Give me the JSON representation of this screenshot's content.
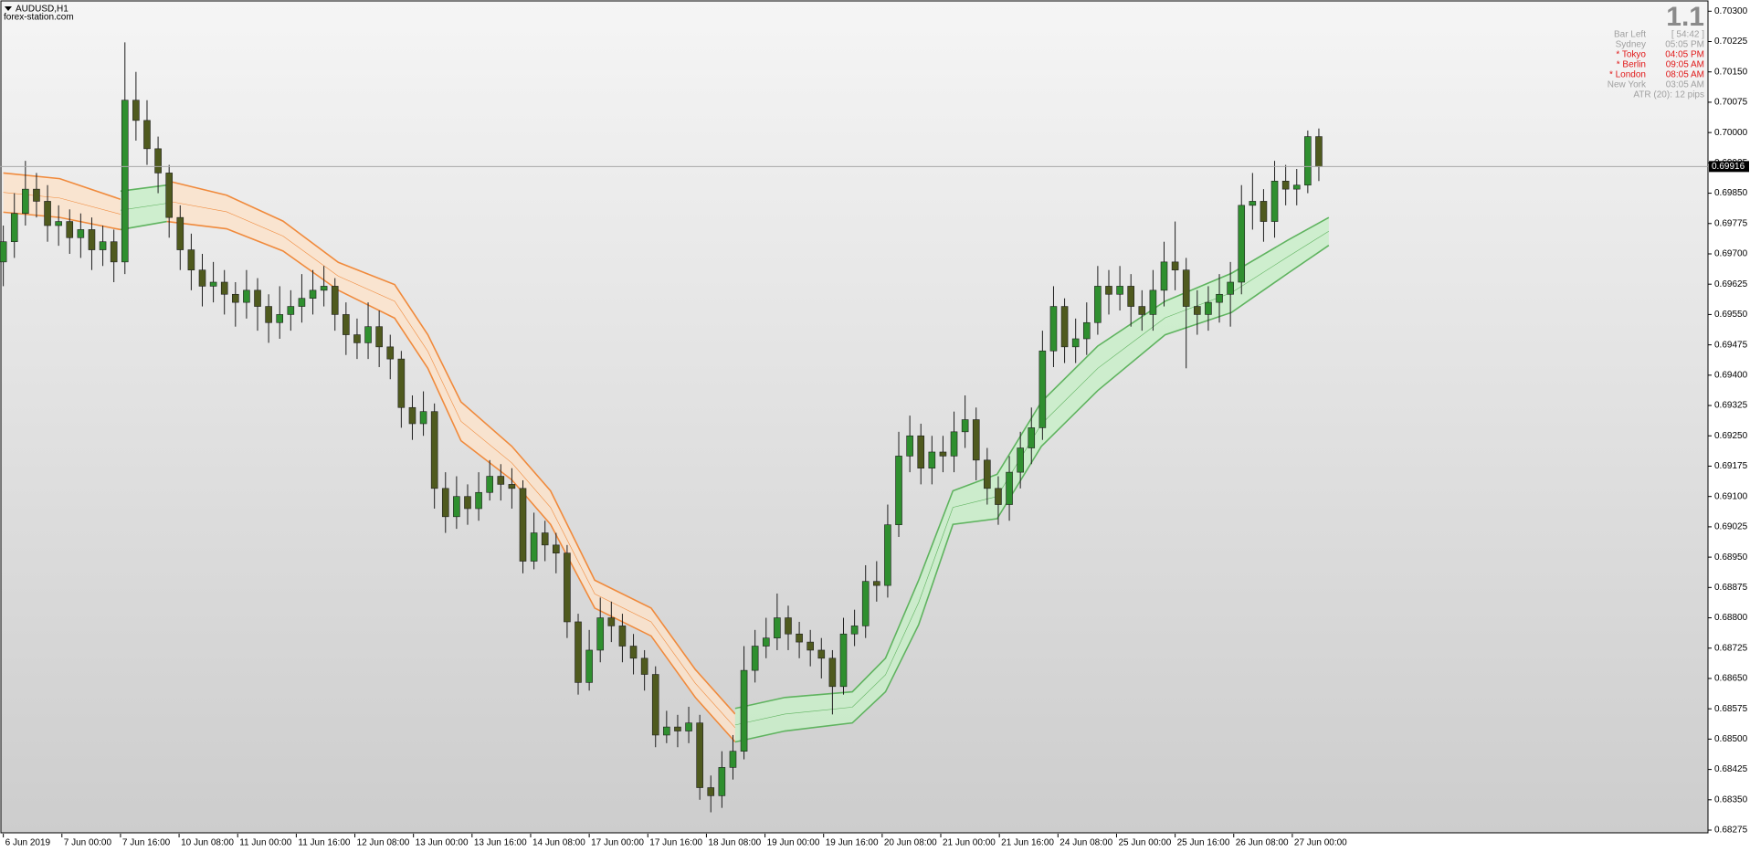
{
  "chart_data": {
    "type": "candlestick",
    "symbol": "AUDUSD,H1",
    "watermark": "forex-station.com",
    "candle_colors": {
      "up": "#2f8f2f",
      "down": "#4f5a1e",
      "wick": "#1e1e1e"
    },
    "open": [
      0.6968,
      0.6973,
      0.698,
      0.6986,
      0.6983,
      0.6977,
      0.6978,
      0.6974,
      0.6976,
      0.6971,
      0.6973,
      0.6968,
      0.7008,
      0.7003,
      0.6996,
      0.699,
      0.6979,
      0.6971,
      0.6966,
      0.6962,
      0.6963,
      0.696,
      0.6958,
      0.6961,
      0.6957,
      0.6953,
      0.6955,
      0.6957,
      0.6959,
      0.6961,
      0.6962,
      0.6955,
      0.695,
      0.6948,
      0.6952,
      0.6947,
      0.6944,
      0.6932,
      0.6928,
      0.6931,
      0.6912,
      0.6905,
      0.691,
      0.6907,
      0.6911,
      0.6915,
      0.6913,
      0.6912,
      0.6894,
      0.6901,
      0.6898,
      0.6896,
      0.6879,
      0.6864,
      0.6872,
      0.688,
      0.6878,
      0.6873,
      0.687,
      0.6866,
      0.6851,
      0.6853,
      0.6852,
      0.6854,
      0.6838,
      0.6836,
      0.6843,
      0.6847,
      0.6867,
      0.6873,
      0.6875,
      0.688,
      0.6876,
      0.6874,
      0.6872,
      0.687,
      0.6863,
      0.6876,
      0.6878,
      0.6889,
      0.6888,
      0.6903,
      0.692,
      0.6925,
      0.6917,
      0.6921,
      0.692,
      0.6926,
      0.6929,
      0.6919,
      0.6912,
      0.6908,
      0.6916,
      0.6922,
      0.6927,
      0.6946,
      0.6957,
      0.6947,
      0.6949,
      0.6953,
      0.6962,
      0.696,
      0.6962,
      0.6957,
      0.6955,
      0.6961,
      0.6968,
      0.6966,
      0.6957,
      0.6955,
      0.6958,
      0.696,
      0.6963,
      0.6982,
      0.6983,
      0.6978,
      0.6988,
      0.6986,
      0.6987,
      0.6999
    ],
    "high": [
      0.6977,
      0.6985,
      0.6993,
      0.699,
      0.6987,
      0.6982,
      0.6981,
      0.698,
      0.6979,
      0.6977,
      0.6976,
      0.70223,
      0.7015,
      0.7008,
      0.6999,
      0.6992,
      0.6982,
      0.6975,
      0.697,
      0.6968,
      0.6966,
      0.6963,
      0.6966,
      0.6964,
      0.696,
      0.6962,
      0.6961,
      0.6965,
      0.6966,
      0.6967,
      0.6964,
      0.6958,
      0.6954,
      0.6958,
      0.6956,
      0.695,
      0.6946,
      0.6935,
      0.6936,
      0.6933,
      0.6916,
      0.6915,
      0.6913,
      0.6916,
      0.6919,
      0.6918,
      0.6917,
      0.6914,
      0.6906,
      0.6904,
      0.6901,
      0.6898,
      0.6881,
      0.6877,
      0.6885,
      0.6884,
      0.6881,
      0.6876,
      0.6872,
      0.6868,
      0.6857,
      0.6856,
      0.6858,
      0.6856,
      0.6841,
      0.6847,
      0.6851,
      0.6873,
      0.6877,
      0.688,
      0.6886,
      0.6883,
      0.6879,
      0.6877,
      0.6875,
      0.6872,
      0.688,
      0.6882,
      0.6893,
      0.6894,
      0.6908,
      0.6926,
      0.693,
      0.6928,
      0.6925,
      0.6925,
      0.6931,
      0.6935,
      0.6932,
      0.6922,
      0.6915,
      0.692,
      0.6926,
      0.6932,
      0.6951,
      0.6962,
      0.6959,
      0.6954,
      0.6958,
      0.6967,
      0.6966,
      0.6967,
      0.6965,
      0.6961,
      0.6966,
      0.6973,
      0.6978,
      0.6969,
      0.6961,
      0.6962,
      0.6965,
      0.6968,
      0.6987,
      0.699,
      0.6986,
      0.6993,
      0.6992,
      0.6991,
      0.70005,
      0.7001
    ],
    "low": [
      0.6962,
      0.6969,
      0.6977,
      0.6979,
      0.6973,
      0.6972,
      0.697,
      0.6969,
      0.6966,
      0.6967,
      0.6963,
      0.6965,
      0.6998,
      0.6992,
      0.6985,
      0.6974,
      0.6966,
      0.6961,
      0.6957,
      0.6958,
      0.6955,
      0.6952,
      0.6954,
      0.6951,
      0.6948,
      0.6949,
      0.6951,
      0.6953,
      0.6955,
      0.6957,
      0.6951,
      0.6945,
      0.6944,
      0.6944,
      0.6942,
      0.6939,
      0.6927,
      0.6924,
      0.6925,
      0.6907,
      0.6901,
      0.6902,
      0.6903,
      0.6904,
      0.6909,
      0.6909,
      0.6907,
      0.6891,
      0.6892,
      0.6894,
      0.6891,
      0.6875,
      0.6861,
      0.6862,
      0.6869,
      0.6874,
      0.6869,
      0.6866,
      0.6862,
      0.6848,
      0.6849,
      0.6848,
      0.6849,
      0.6835,
      0.68319,
      0.6833,
      0.684,
      0.6845,
      0.6864,
      0.687,
      0.6872,
      0.6872,
      0.687,
      0.6868,
      0.6865,
      0.68561,
      0.6861,
      0.6873,
      0.6875,
      0.6884,
      0.6885,
      0.69,
      0.6916,
      0.6913,
      0.6913,
      0.6916,
      0.6916,
      0.6922,
      0.6914,
      0.6908,
      0.6903,
      0.6904,
      0.6912,
      0.6918,
      0.6924,
      0.6942,
      0.6943,
      0.6943,
      0.6945,
      0.695,
      0.6955,
      0.6956,
      0.6952,
      0.6951,
      0.6951,
      0.6957,
      0.6961,
      0.69417,
      0.695,
      0.6951,
      0.6953,
      0.6952,
      0.696,
      0.6976,
      0.6973,
      0.6974,
      0.6982,
      0.6982,
      0.6985,
      0.6988
    ],
    "close": [
      0.6973,
      0.698,
      0.6986,
      0.6983,
      0.6977,
      0.6978,
      0.6974,
      0.6976,
      0.6971,
      0.6973,
      0.6968,
      0.7008,
      0.7003,
      0.6996,
      0.699,
      0.6979,
      0.6971,
      0.6966,
      0.6962,
      0.6963,
      0.696,
      0.6958,
      0.6961,
      0.6957,
      0.6953,
      0.6955,
      0.6957,
      0.6959,
      0.6961,
      0.6962,
      0.6955,
      0.695,
      0.6948,
      0.6952,
      0.6947,
      0.6944,
      0.6932,
      0.6928,
      0.6931,
      0.6912,
      0.6905,
      0.691,
      0.6907,
      0.6911,
      0.6915,
      0.6913,
      0.6912,
      0.6894,
      0.6901,
      0.6898,
      0.6896,
      0.6879,
      0.6864,
      0.6872,
      0.688,
      0.6878,
      0.6873,
      0.687,
      0.6866,
      0.6851,
      0.6853,
      0.6852,
      0.6854,
      0.6838,
      0.6836,
      0.6843,
      0.6847,
      0.6867,
      0.6873,
      0.6875,
      0.688,
      0.6876,
      0.6874,
      0.6872,
      0.687,
      0.6863,
      0.6876,
      0.6878,
      0.6889,
      0.6888,
      0.6903,
      0.692,
      0.6925,
      0.6917,
      0.6921,
      0.692,
      0.6926,
      0.6929,
      0.6919,
      0.6912,
      0.6908,
      0.6916,
      0.6922,
      0.6927,
      0.6946,
      0.6957,
      0.6947,
      0.6949,
      0.6953,
      0.6962,
      0.696,
      0.6962,
      0.6957,
      0.6955,
      0.6961,
      0.6968,
      0.6966,
      0.6957,
      0.6955,
      0.6958,
      0.696,
      0.6963,
      0.6982,
      0.6983,
      0.6978,
      0.6988,
      0.6986,
      0.6987,
      0.6999,
      0.69916
    ],
    "bands": [
      {
        "color": "#f08a3c",
        "fill": "#fbe3cb",
        "x": [
          0,
          5.1,
          10.6
        ],
        "upper": [
          0.699,
          0.69886,
          0.69835
        ],
        "middle": [
          0.69852,
          0.69838,
          0.69798
        ],
        "lower": [
          0.69803,
          0.6979,
          0.6976
        ]
      },
      {
        "color": "#5fb35f",
        "fill": "#c9efc9",
        "x": [
          10.6,
          14.8
        ],
        "upper": [
          0.69855,
          0.6987
        ],
        "middle": [
          0.69808,
          0.69825
        ],
        "lower": [
          0.6976,
          0.6978
        ]
      },
      {
        "color": "#f08a3c",
        "fill": "#fbe3cb",
        "x": [
          14.8,
          20.2,
          25.3,
          30.3,
          35.4,
          38.4,
          41.4,
          46,
          49.5,
          53.5,
          58.6,
          62.6,
          66.2
        ],
        "upper": [
          0.69881,
          0.69845,
          0.69781,
          0.69679,
          0.69624,
          0.695,
          0.69334,
          0.69224,
          0.69114,
          0.68893,
          0.68824,
          0.68672,
          0.68562
        ],
        "middle": [
          0.69831,
          0.69804,
          0.69744,
          0.69645,
          0.69583,
          0.69459,
          0.69286,
          0.69183,
          0.69073,
          0.68859,
          0.6879,
          0.68638,
          0.68528
        ],
        "lower": [
          0.6978,
          0.69762,
          0.69707,
          0.6961,
          0.69541,
          0.69417,
          0.69238,
          0.69141,
          0.69031,
          0.68824,
          0.68755,
          0.68603,
          0.68493
        ]
      },
      {
        "color": "#5fb35f",
        "fill": "#c9efc9",
        "x": [
          66.2,
          70.7,
          76.8,
          79.8,
          82.8,
          85.9,
          89.9,
          93.9,
          99,
          105.1,
          111.1,
          116.2,
          119.9
        ],
        "upper": [
          0.68576,
          0.68603,
          0.68617,
          0.687,
          0.68893,
          0.69114,
          0.69155,
          0.69334,
          0.69472,
          0.69583,
          0.69652,
          0.69734,
          0.6979
        ],
        "middle": [
          0.68535,
          0.68562,
          0.68579,
          0.68659,
          0.68838,
          0.69073,
          0.691,
          0.69279,
          0.69417,
          0.69542,
          0.69604,
          0.69693,
          0.69756
        ],
        "lower": [
          0.68493,
          0.6852,
          0.6854,
          0.68617,
          0.68783,
          0.69031,
          0.69045,
          0.69224,
          0.69362,
          0.695,
          0.69555,
          0.69652,
          0.69721
        ]
      }
    ],
    "current_price": 0.69916,
    "xlim": [
      -0.3,
      154.2
    ],
    "xticks": [
      {
        "value": 0,
        "label": "6 Jun 2019"
      },
      {
        "value": 5.3,
        "label": "7 Jun 00:00"
      },
      {
        "value": 10.6,
        "label": "7 Jun 16:00"
      },
      {
        "value": 15.9,
        "label": "10 Jun 08:00"
      },
      {
        "value": 21.2,
        "label": "11 Jun 00:00"
      },
      {
        "value": 26.5,
        "label": "11 Jun 16:00"
      },
      {
        "value": 31.8,
        "label": "12 Jun 08:00"
      },
      {
        "value": 37.1,
        "label": "13 Jun 00:00"
      },
      {
        "value": 42.4,
        "label": "13 Jun 16:00"
      },
      {
        "value": 47.7,
        "label": "14 Jun 08:00"
      },
      {
        "value": 53,
        "label": "17 Jun 00:00"
      },
      {
        "value": 58.3,
        "label": "17 Jun 16:00"
      },
      {
        "value": 63.6,
        "label": "18 Jun 08:00"
      },
      {
        "value": 68.9,
        "label": "19 Jun 00:00"
      },
      {
        "value": 74.2,
        "label": "19 Jun 16:00"
      },
      {
        "value": 79.5,
        "label": "20 Jun 08:00"
      },
      {
        "value": 84.8,
        "label": "21 Jun 00:00"
      },
      {
        "value": 90.1,
        "label": "21 Jun 16:00"
      },
      {
        "value": 95.4,
        "label": "24 Jun 08:00"
      },
      {
        "value": 100.7,
        "label": "25 Jun 00:00"
      },
      {
        "value": 106,
        "label": "25 Jun 16:00"
      },
      {
        "value": 111.3,
        "label": "26 Jun 08:00"
      },
      {
        "value": 116.6,
        "label": "27 Jun 00:00"
      }
    ],
    "ylim": [
      0.68266,
      0.70321
    ],
    "yticks": [
      {
        "value": 0.703,
        "label": "0.70300"
      },
      0.70225,
      {
        "value": 0.7015,
        "label": "0.70150"
      },
      0.70075,
      {
        "value": 0.7,
        "label": "0.70000"
      },
      0.69925,
      {
        "value": 0.6985,
        "label": "0.69850"
      },
      0.69775,
      {
        "value": 0.697,
        "label": "0.69700"
      },
      0.69625,
      {
        "value": 0.6955,
        "label": "0.69550"
      },
      0.69475,
      {
        "value": 0.694,
        "label": "0.69400"
      },
      0.69325,
      {
        "value": 0.6925,
        "label": "0.69250"
      },
      0.69175,
      {
        "value": 0.691,
        "label": "0.69100"
      },
      0.69025,
      {
        "value": 0.6895,
        "label": "0.68950"
      },
      0.68875,
      {
        "value": 0.688,
        "label": "0.68800"
      },
      0.68725,
      {
        "value": 0.6865,
        "label": "0.68650"
      },
      0.68575,
      {
        "value": 0.685,
        "label": "0.68500"
      },
      0.68425,
      {
        "value": 0.6835,
        "label": "0.68350"
      },
      0.68275
    ],
    "info_panel": {
      "spread": "1.1",
      "rows": [
        {
          "label": "Bar Left",
          "value": "[ 54:42 ]",
          "color": "#a0a0a0"
        },
        {
          "label": "Sydney",
          "value": "05:05 PM",
          "color": "#a0a0a0"
        },
        {
          "label": "* Tokyo",
          "value": "04:05 PM",
          "color": "#e01818"
        },
        {
          "label": "* Berlin",
          "value": "09:05 AM",
          "color": "#e01818"
        },
        {
          "label": "* London",
          "value": "08:05 AM",
          "color": "#e01818"
        },
        {
          "label": "New York",
          "value": "03:05 AM",
          "color": "#a0a0a0"
        }
      ],
      "atr": "ATR (20): 12 pips"
    }
  }
}
